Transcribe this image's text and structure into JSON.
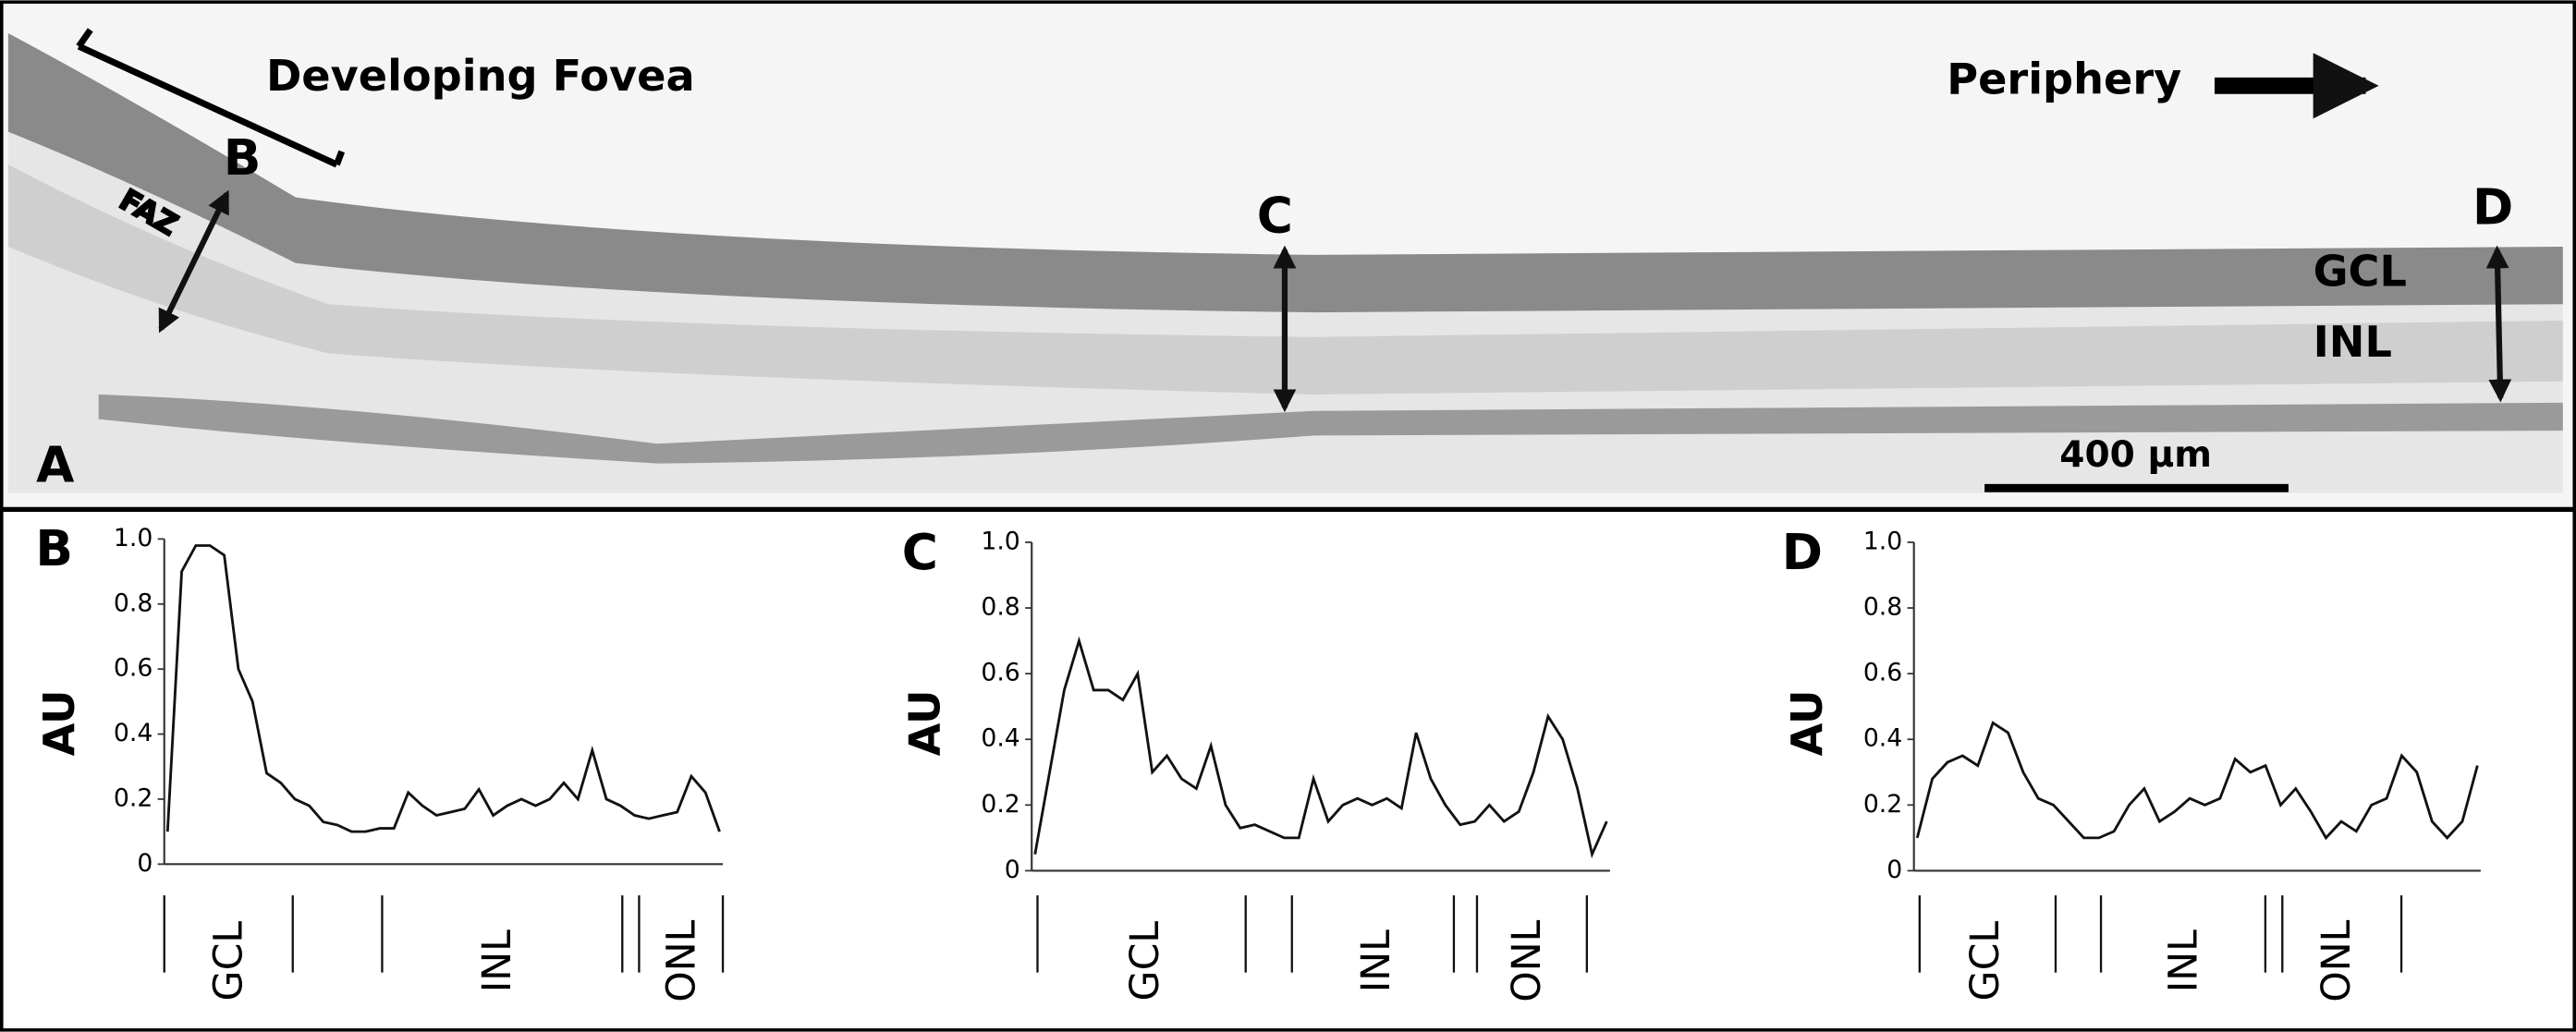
{
  "panel_a": {
    "label": "A",
    "title": "Developing Fovea",
    "direction": "Periphery",
    "faz": "FAZ",
    "markers": [
      "B",
      "C",
      "D"
    ],
    "layers": [
      "GCL",
      "INL"
    ],
    "scale_bar": "400 µm"
  },
  "chart_data": [
    {
      "type": "line",
      "panel": "B",
      "ylabel": "AU",
      "color": "#111111",
      "ylim": [
        0,
        1
      ],
      "yticks": [
        0,
        0.2,
        0.4,
        0.6,
        0.8,
        {
          "value": 1,
          "label": "1.0"
        }
      ],
      "values": [
        0.1,
        0.9,
        0.98,
        0.98,
        0.95,
        0.6,
        0.5,
        0.28,
        0.25,
        0.2,
        0.18,
        0.13,
        0.12,
        0.1,
        0.1,
        0.11,
        0.11,
        0.22,
        0.18,
        0.15,
        0.16,
        0.17,
        0.23,
        0.15,
        0.18,
        0.2,
        0.18,
        0.2,
        0.25,
        0.2,
        0.35,
        0.2,
        0.18,
        0.15,
        0.14,
        0.15,
        0.16,
        0.27,
        0.22,
        0.1
      ],
      "layer_labels": [
        "GCL",
        "INL",
        "ONL"
      ]
    },
    {
      "type": "line",
      "panel": "C",
      "ylabel": "AU",
      "color": "#111111",
      "ylim": [
        0,
        1
      ],
      "yticks": [
        0,
        0.2,
        0.4,
        0.6,
        0.8,
        {
          "value": 1,
          "label": "1.0"
        }
      ],
      "values": [
        0.05,
        0.3,
        0.55,
        0.7,
        0.55,
        0.55,
        0.52,
        0.6,
        0.3,
        0.35,
        0.28,
        0.25,
        0.38,
        0.2,
        0.13,
        0.14,
        0.12,
        0.1,
        0.1,
        0.28,
        0.15,
        0.2,
        0.22,
        0.2,
        0.22,
        0.19,
        0.42,
        0.28,
        0.2,
        0.14,
        0.15,
        0.2,
        0.15,
        0.18,
        0.3,
        0.47,
        0.4,
        0.25,
        0.05,
        0.15
      ],
      "layer_labels": [
        "GCL",
        "INL",
        "ONL"
      ]
    },
    {
      "type": "line",
      "panel": "D",
      "ylabel": "AU",
      "color": "#111111",
      "ylim": [
        0,
        1
      ],
      "yticks": [
        0,
        0.2,
        0.4,
        0.6,
        0.8,
        {
          "value": 1,
          "label": "1.0"
        }
      ],
      "values": [
        0.1,
        0.28,
        0.33,
        0.35,
        0.32,
        0.45,
        0.42,
        0.3,
        0.22,
        0.2,
        0.15,
        0.1,
        0.1,
        0.12,
        0.2,
        0.25,
        0.15,
        0.18,
        0.22,
        0.2,
        0.22,
        0.34,
        0.3,
        0.32,
        0.2,
        0.25,
        0.18,
        0.1,
        0.15,
        0.12,
        0.2,
        0.22,
        0.35,
        0.3,
        0.15,
        0.1,
        0.15,
        0.32
      ],
      "layer_labels": [
        "GCL",
        "INL",
        "ONL"
      ]
    }
  ]
}
